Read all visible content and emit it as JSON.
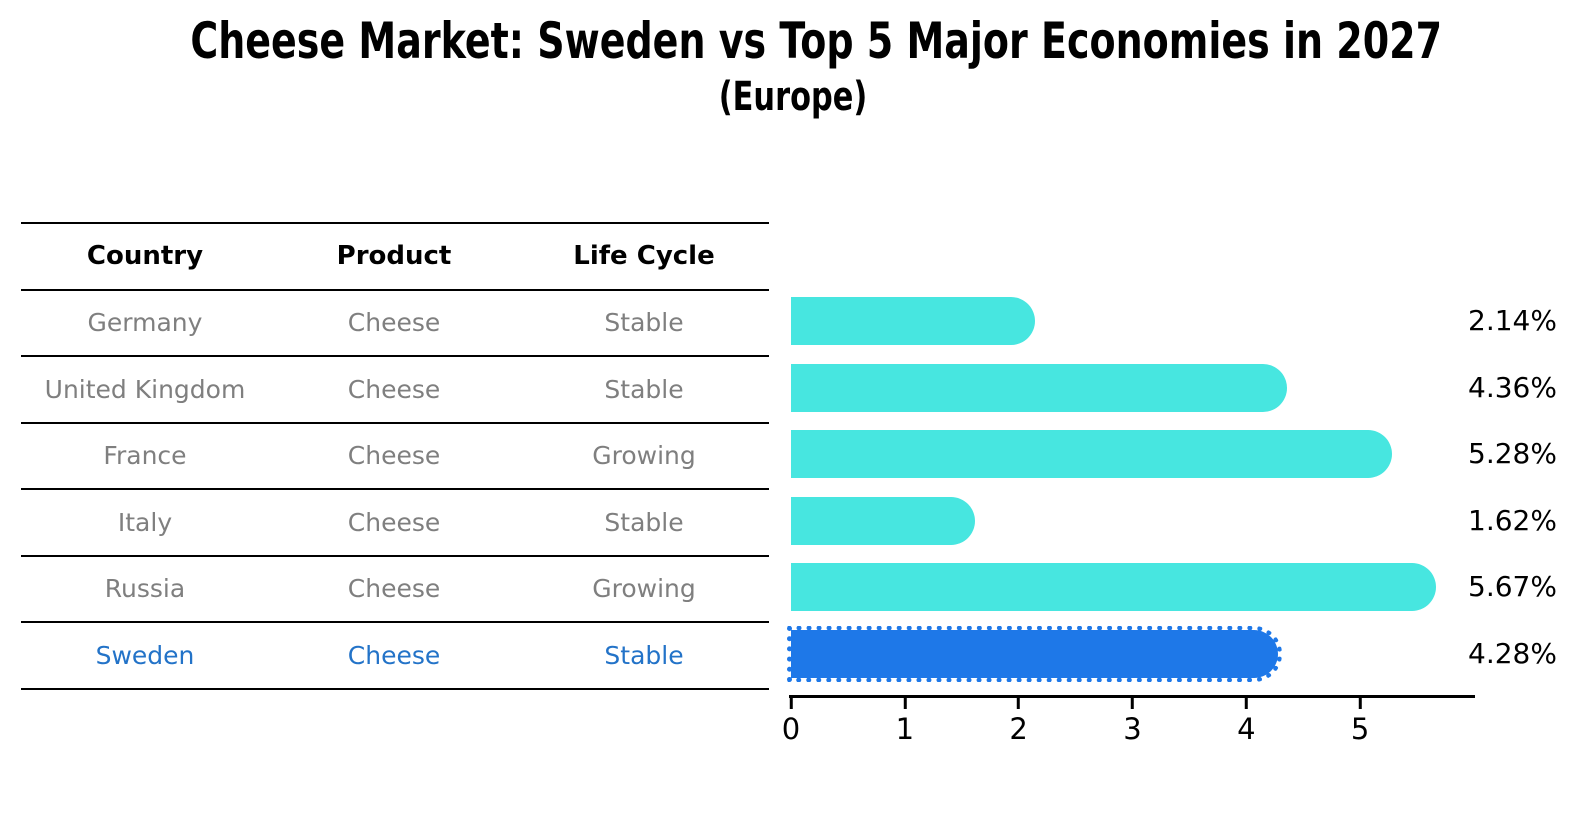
{
  "title": "Cheese Market: Sweden vs Top 5 Major Economies in 2027",
  "subtitle": "(Europe)",
  "table": {
    "headers": [
      "Country",
      "Product",
      "Life Cycle"
    ],
    "rows": [
      {
        "country": "Germany",
        "product": "Cheese",
        "life_cycle": "Stable",
        "highlighted": false
      },
      {
        "country": "United Kingdom",
        "product": "Cheese",
        "life_cycle": "Stable",
        "highlighted": false
      },
      {
        "country": "France",
        "product": "Cheese",
        "life_cycle": "Growing",
        "highlighted": false
      },
      {
        "country": "Italy",
        "product": "Cheese",
        "life_cycle": "Stable",
        "highlighted": false
      },
      {
        "country": "Russia",
        "product": "Cheese",
        "life_cycle": "Growing",
        "highlighted": false
      },
      {
        "country": "Sweden",
        "product": "Cheese",
        "life_cycle": "Stable",
        "highlighted": true
      }
    ]
  },
  "chart_data": {
    "type": "bar",
    "orientation": "horizontal",
    "title": "Cheese Market: Sweden vs Top 5 Major Economies in 2027 (Europe)",
    "categories": [
      "Germany",
      "United Kingdom",
      "France",
      "Italy",
      "Russia",
      "Sweden"
    ],
    "values": [
      2.14,
      4.36,
      5.28,
      1.62,
      5.67,
      4.28
    ],
    "value_labels": [
      "2.14%",
      "4.36%",
      "5.28%",
      "1.62%",
      "5.67%",
      "4.28%"
    ],
    "xlabel": "",
    "ylabel": "",
    "xlim": [
      0,
      6
    ],
    "x_ticks": [
      0,
      1,
      2,
      3,
      4,
      5
    ],
    "grid": false,
    "legend": false,
    "bar_color": "#47e6e0",
    "highlight_color": "#1e78e8",
    "highlight_index": 5,
    "highlight_text_color": "#2373c8",
    "text_gray": "#7f7f7f"
  }
}
